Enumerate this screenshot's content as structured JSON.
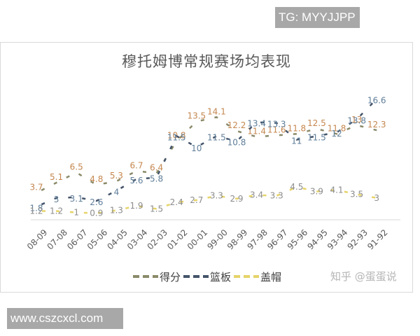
{
  "watermarks": {
    "top_right": "TG: MYYJJPP",
    "bottom_left": "www.cszcxcl.com",
    "zhihu": "知乎 @蛋蛋说"
  },
  "colors": {
    "points": "#c5874f",
    "rebounds": "#5f7e99",
    "blocks": "#d8d08a",
    "points_line": "#8a8a6a",
    "rebounds_line": "#44546a",
    "blocks_line": "#e6d36a"
  },
  "chart_data": {
    "type": "line",
    "title": "穆托姆博常规赛场均表现",
    "xlabel": "",
    "ylabel": "",
    "grid": false,
    "legend_position": "bottom",
    "categories": [
      "08-09",
      "07-08",
      "06-07",
      "05-06",
      "04-05",
      "03-04",
      "02-03",
      "01-02",
      "00-01",
      "99-00",
      "98-99",
      "97-98",
      "96-97",
      "95-96",
      "94-95",
      "93-94",
      "92-93",
      "91-92"
    ],
    "series": [
      {
        "name": "得分",
        "values": [
          3.7,
          5.1,
          6.5,
          4.8,
          5.3,
          6.7,
          6.4,
          10.8,
          13.5,
          14.1,
          12.2,
          11.4,
          11.6,
          11.8,
          12.5,
          11.8,
          13,
          12.3
        ]
      },
      {
        "name": "篮板",
        "values": [
          1.8,
          3,
          3.1,
          2.6,
          4,
          5.6,
          5.8,
          11.5,
          10,
          11.5,
          10.8,
          13.4,
          13.3,
          11,
          11.5,
          12,
          13.8,
          16.6
        ]
      },
      {
        "name": "盖帽",
        "values": [
          1.2,
          1.2,
          1,
          0.9,
          1.3,
          1.9,
          1.5,
          2.4,
          2.7,
          3.3,
          2.9,
          3.4,
          3.3,
          4.5,
          3.9,
          4.1,
          3.5,
          3
        ]
      }
    ],
    "ylim": [
      0,
      18
    ]
  }
}
